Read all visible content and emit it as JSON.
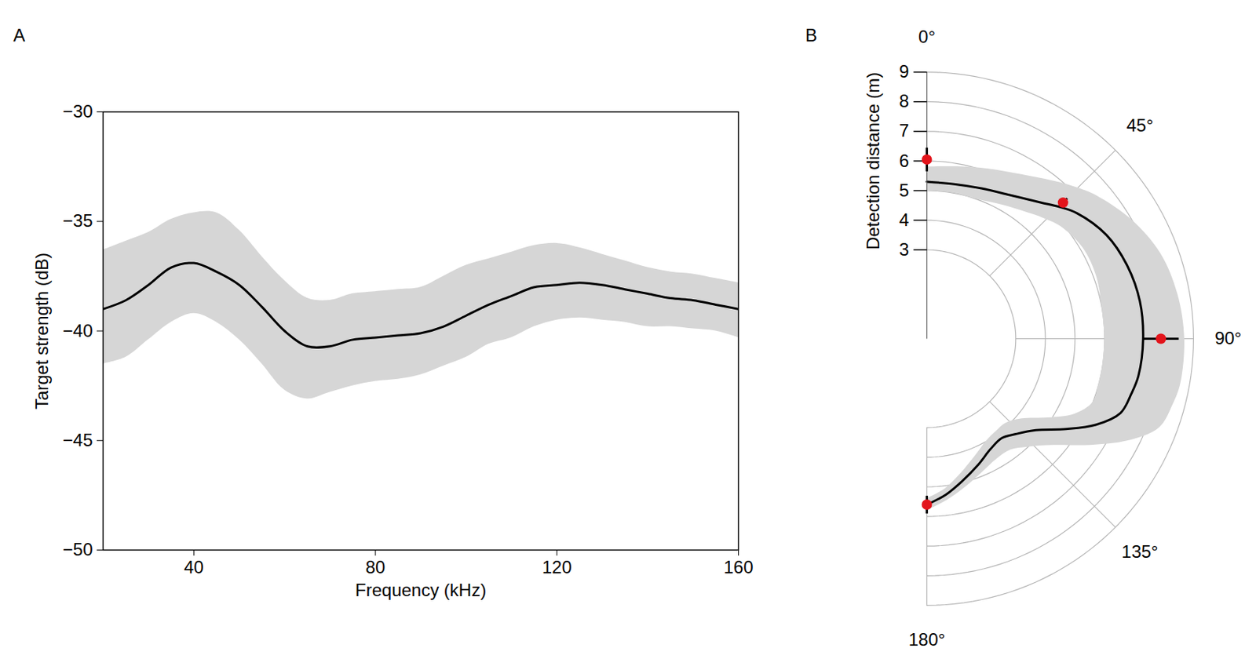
{
  "chart_data": [
    {
      "type": "line",
      "panel": "A",
      "x_label": "Frequency (kHz)",
      "y_label": "Target strength (dB)",
      "x": [
        20,
        25,
        30,
        35,
        40,
        45,
        50,
        55,
        60,
        65,
        70,
        75,
        80,
        85,
        90,
        95,
        100,
        105,
        110,
        115,
        120,
        125,
        130,
        135,
        140,
        145,
        150,
        155,
        160
      ],
      "values": [
        -39.0,
        -38.6,
        -37.9,
        -37.1,
        -36.9,
        -37.3,
        -37.9,
        -38.9,
        -40.0,
        -40.7,
        -40.7,
        -40.4,
        -40.3,
        -40.2,
        -40.1,
        -39.8,
        -39.3,
        -38.8,
        -38.4,
        -38.0,
        -37.9,
        -37.8,
        -37.9,
        -38.1,
        -38.3,
        -38.5,
        -38.6,
        -38.8,
        -39.0
      ],
      "lower": [
        -41.5,
        -41.2,
        -40.4,
        -39.6,
        -39.2,
        -39.6,
        -40.4,
        -41.5,
        -42.7,
        -43.1,
        -42.8,
        -42.5,
        -42.3,
        -42.2,
        -42.0,
        -41.6,
        -41.2,
        -40.6,
        -40.3,
        -39.8,
        -39.5,
        -39.4,
        -39.5,
        -39.6,
        -39.8,
        -39.8,
        -39.9,
        -40.0,
        -40.3
      ],
      "upper": [
        -36.3,
        -35.9,
        -35.5,
        -34.9,
        -34.6,
        -34.6,
        -35.4,
        -36.6,
        -37.7,
        -38.5,
        -38.6,
        -38.3,
        -38.2,
        -38.1,
        -38.0,
        -37.5,
        -37.0,
        -36.7,
        -36.4,
        -36.1,
        -36.0,
        -36.2,
        -36.5,
        -36.8,
        -37.1,
        -37.3,
        -37.4,
        -37.6,
        -37.8
      ],
      "color": "#000000",
      "xlim": [
        20,
        160
      ],
      "xticks": [
        40,
        80,
        120,
        160
      ],
      "ylim": [
        -50,
        -30
      ],
      "yticks": [
        {
          "value": -50,
          "label": "−50"
        },
        {
          "value": -45,
          "label": "−45"
        },
        {
          "value": -40,
          "label": "−40"
        },
        {
          "value": -35,
          "label": "−35"
        },
        {
          "value": -30,
          "label": "−30"
        }
      ]
    },
    {
      "type": "polar",
      "panel": "B",
      "y_label": "Detection distance (m)",
      "theta": [
        0,
        10,
        20,
        30,
        40,
        45,
        50,
        60,
        70,
        80,
        90,
        100,
        105,
        111,
        117,
        123,
        130,
        137,
        143,
        150,
        158,
        166,
        173,
        180
      ],
      "values": [
        5.3,
        5.3,
        5.4,
        5.6,
        6.0,
        6.3,
        6.6,
        7.0,
        7.2,
        7.3,
        7.3,
        7.25,
        7.15,
        7.0,
        6.4,
        5.6,
        4.8,
        4.4,
        4.2,
        4.3,
        4.6,
        4.95,
        5.3,
        5.6
      ],
      "lower": [
        5.0,
        5.0,
        5.0,
        5.2,
        5.5,
        5.7,
        5.9,
        6.1,
        6.1,
        6.0,
        6.0,
        6.0,
        6.0,
        6.0,
        5.6,
        4.9,
        4.2,
        3.9,
        3.9,
        4.0,
        4.3,
        4.7,
        5.1,
        5.4
      ],
      "upper": [
        5.8,
        5.9,
        6.1,
        6.4,
        6.9,
        7.2,
        7.5,
        8.0,
        8.4,
        8.6,
        8.7,
        8.7,
        8.6,
        8.4,
        7.6,
        6.6,
        5.6,
        5.0,
        4.7,
        4.7,
        4.9,
        5.2,
        5.5,
        5.8
      ],
      "color": "#000000",
      "points": {
        "theta": [
          0,
          45,
          90,
          180
        ],
        "values": [
          6.05,
          6.5,
          7.9,
          5.6
        ],
        "error": [
          0.4,
          0.2,
          0.6,
          0.3
        ],
        "color": "#e3141b"
      },
      "theta_lim": [
        0,
        180
      ],
      "theta_ticks": [
        {
          "value": 0,
          "label": "0°"
        },
        {
          "value": 45,
          "label": "45°"
        },
        {
          "value": 90,
          "label": "90°"
        },
        {
          "value": 135,
          "label": "135°"
        },
        {
          "value": 180,
          "label": "180°"
        }
      ],
      "rlim": [
        0,
        9
      ],
      "rticks": [
        3,
        4,
        5,
        6,
        7,
        8,
        9
      ]
    }
  ]
}
